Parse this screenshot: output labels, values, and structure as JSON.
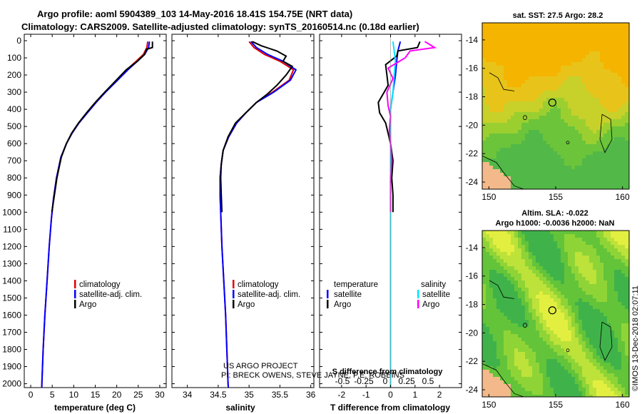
{
  "header": {
    "title_line1": "Argo profile: aoml 5904389_103 14-May-2016 18.41S 154.75E (NRT data)",
    "title_line2": "Climatology: CARS2009. Satellite-adjusted climatology: synTS_20160514.nc (0.18d earlier)"
  },
  "colors": {
    "climatology": "#e00000",
    "satellite": "#0000ff",
    "argo": "#000000",
    "satellite_s": "#00e5ff",
    "argo_s": "#ff00ff",
    "land": "#f3b98a"
  },
  "depth_axis": {
    "ticks": [
      "0",
      "100",
      "200",
      "300",
      "400",
      "500",
      "600",
      "700",
      "800",
      "900",
      "1000",
      "1100",
      "1200",
      "1300",
      "1400",
      "1500",
      "1600",
      "1700",
      "1800",
      "1900",
      "2000"
    ],
    "range": [
      0,
      2060
    ]
  },
  "chart_data": [
    {
      "type": "line",
      "name": "temperature-profile",
      "xlabel": "temperature (deg C)",
      "xlim": [
        -1.5,
        31.5
      ],
      "xticks": [
        "0",
        "5",
        "10",
        "15",
        "20",
        "25",
        "30"
      ],
      "legend": [
        "climatology",
        "satellite-adj. clim.",
        "Argo"
      ],
      "series": [
        {
          "name": "climatology",
          "points": [
            [
              27.2,
              5
            ],
            [
              27.0,
              40
            ],
            [
              26.2,
              80
            ],
            [
              24.5,
              120
            ],
            [
              22.3,
              170
            ],
            [
              20.0,
              230
            ],
            [
              17.3,
              300
            ],
            [
              15.2,
              360
            ],
            [
              13.2,
              420
            ],
            [
              11.2,
              480
            ],
            [
              9.6,
              540
            ],
            [
              8.3,
              600
            ],
            [
              7.0,
              680
            ],
            [
              6.0,
              800
            ],
            [
              5.3,
              920
            ],
            [
              4.8,
              1040
            ],
            [
              4.3,
              1200
            ],
            [
              3.8,
              1400
            ],
            [
              3.3,
              1600
            ],
            [
              2.9,
              1800
            ],
            [
              2.6,
              2000
            ],
            [
              2.55,
              2050
            ]
          ]
        },
        {
          "name": "satellite-adj. clim.",
          "points": [
            [
              27.6,
              5
            ],
            [
              27.4,
              40
            ],
            [
              26.5,
              80
            ],
            [
              24.8,
              120
            ],
            [
              22.6,
              170
            ],
            [
              20.2,
              230
            ],
            [
              17.4,
              300
            ],
            [
              15.2,
              360
            ],
            [
              13.2,
              420
            ],
            [
              11.2,
              480
            ],
            [
              9.6,
              540
            ],
            [
              8.3,
              600
            ],
            [
              7.0,
              680
            ],
            [
              6.0,
              800
            ],
            [
              5.3,
              920
            ],
            [
              4.8,
              1040
            ],
            [
              4.3,
              1200
            ],
            [
              3.8,
              1400
            ],
            [
              3.3,
              1600
            ],
            [
              2.9,
              1800
            ],
            [
              2.6,
              2000
            ],
            [
              2.55,
              2050
            ]
          ]
        },
        {
          "name": "Argo",
          "points": [
            [
              28.3,
              5
            ],
            [
              28.3,
              40
            ],
            [
              26.9,
              50
            ],
            [
              26.5,
              80
            ],
            [
              24.8,
              120
            ],
            [
              22.2,
              170
            ],
            [
              19.9,
              230
            ],
            [
              17.2,
              300
            ],
            [
              15.0,
              360
            ],
            [
              13.0,
              420
            ],
            [
              11.1,
              480
            ],
            [
              9.5,
              540
            ],
            [
              8.3,
              600
            ],
            [
              7.1,
              680
            ],
            [
              6.1,
              800
            ],
            [
              5.4,
              920
            ],
            [
              4.9,
              1000
            ]
          ]
        }
      ]
    },
    {
      "type": "line",
      "name": "salinity-profile",
      "xlabel": "salinity",
      "xlim": [
        33.75,
        36.05
      ],
      "xticks": [
        "34",
        "34.5",
        "35",
        "35.5",
        "36"
      ],
      "legend": [
        "climatology",
        "satellite-adj. clim.",
        "Argo"
      ],
      "credit_line1": "US ARGO PROJECT",
      "credit_line2": "PI: BRECK OWENS, STEVE JAYNE, P.E. ROBBINS",
      "series": [
        {
          "name": "climatology",
          "points": [
            [
              35.0,
              5
            ],
            [
              35.08,
              40
            ],
            [
              35.25,
              80
            ],
            [
              35.5,
              120
            ],
            [
              35.72,
              170
            ],
            [
              35.65,
              230
            ],
            [
              35.38,
              300
            ],
            [
              35.12,
              360
            ],
            [
              34.95,
              420
            ],
            [
              34.8,
              480
            ],
            [
              34.67,
              560
            ],
            [
              34.58,
              640
            ],
            [
              34.55,
              720
            ],
            [
              34.53,
              800
            ],
            [
              34.53,
              900
            ],
            [
              34.54,
              1000
            ],
            [
              34.56,
              1200
            ],
            [
              34.59,
              1400
            ],
            [
              34.62,
              1600
            ],
            [
              34.64,
              1800
            ],
            [
              34.66,
              2000
            ],
            [
              34.67,
              2050
            ]
          ]
        },
        {
          "name": "satellite-adj. clim.",
          "points": [
            [
              35.03,
              5
            ],
            [
              35.12,
              40
            ],
            [
              35.3,
              80
            ],
            [
              35.55,
              120
            ],
            [
              35.76,
              170
            ],
            [
              35.67,
              230
            ],
            [
              35.4,
              300
            ],
            [
              35.12,
              360
            ],
            [
              34.95,
              420
            ],
            [
              34.8,
              480
            ],
            [
              34.67,
              560
            ],
            [
              34.58,
              640
            ],
            [
              34.55,
              720
            ],
            [
              34.53,
              800
            ],
            [
              34.53,
              900
            ],
            [
              34.54,
              1000
            ],
            [
              34.56,
              1200
            ],
            [
              34.59,
              1400
            ],
            [
              34.62,
              1600
            ],
            [
              34.64,
              1800
            ],
            [
              34.66,
              2000
            ],
            [
              34.67,
              2050
            ]
          ]
        },
        {
          "name": "Argo",
          "points": [
            [
              35.05,
              5
            ],
            [
              35.2,
              30
            ],
            [
              35.45,
              60
            ],
            [
              35.6,
              90
            ],
            [
              35.55,
              120
            ],
            [
              35.7,
              150
            ],
            [
              35.6,
              200
            ],
            [
              35.45,
              260
            ],
            [
              35.3,
              310
            ],
            [
              35.12,
              360
            ],
            [
              34.95,
              420
            ],
            [
              34.78,
              480
            ],
            [
              34.66,
              560
            ],
            [
              34.58,
              640
            ],
            [
              34.55,
              720
            ],
            [
              34.54,
              800
            ],
            [
              34.55,
              900
            ],
            [
              34.56,
              1000
            ]
          ]
        }
      ]
    },
    {
      "type": "line",
      "name": "difference-profile",
      "xlabel": "T difference from climatology",
      "xlabel_top": "S difference from climatology",
      "xlim": [
        -2.9,
        2.9
      ],
      "xticks": [
        "-2",
        "-1",
        "0",
        "1",
        "2"
      ],
      "xticks_top": [
        "-0.5",
        "-0.25",
        "0",
        "0.25",
        "0.5"
      ],
      "legend_left_title": "temperature",
      "legend_right_title": "salinity",
      "legend_left": [
        "satellite",
        "Argo"
      ],
      "legend_right": [
        "satellite",
        "Argo"
      ],
      "series": [
        {
          "name": "T satellite",
          "points": [
            [
              0.4,
              5
            ],
            [
              0.3,
              60
            ],
            [
              0.25,
              120
            ],
            [
              0.2,
              200
            ],
            [
              0.1,
              300
            ],
            [
              0.0,
              400
            ],
            [
              0.0,
              600
            ],
            [
              0.0,
              1000
            ],
            [
              0.0,
              2050
            ]
          ]
        },
        {
          "name": "T Argo",
          "points": [
            [
              1.2,
              5
            ],
            [
              1.1,
              40
            ],
            [
              0.3,
              60
            ],
            [
              0.25,
              90
            ],
            [
              -0.2,
              140
            ],
            [
              -0.15,
              200
            ],
            [
              -0.1,
              260
            ],
            [
              -0.5,
              360
            ],
            [
              -0.45,
              420
            ],
            [
              -0.2,
              480
            ],
            [
              -0.1,
              540
            ],
            [
              0.0,
              600
            ],
            [
              0.1,
              700
            ],
            [
              0.05,
              800
            ],
            [
              0.1,
              900
            ],
            [
              0.1,
              1000
            ]
          ]
        },
        {
          "name": "S satellite",
          "points": [
            [
              0.1,
              5
            ],
            [
              0.15,
              60
            ],
            [
              0.2,
              120
            ],
            [
              0.15,
              200
            ],
            [
              0.1,
              300
            ],
            [
              0.0,
              400
            ],
            [
              0.0,
              1000
            ],
            [
              0.0,
              2050
            ]
          ]
        },
        {
          "name": "S Argo",
          "points": [
            [
              1.4,
              5
            ],
            [
              1.8,
              40
            ],
            [
              0.8,
              60
            ],
            [
              0.6,
              100
            ],
            [
              -0.1,
              160
            ],
            [
              0.1,
              220
            ],
            [
              -0.15,
              300
            ],
            [
              -0.1,
              380
            ],
            [
              0.0,
              440
            ],
            [
              -0.05,
              520
            ],
            [
              0.0,
              600
            ],
            [
              0.05,
              700
            ],
            [
              0.0,
              800
            ],
            [
              0.0,
              900
            ],
            [
              0.0,
              1000
            ]
          ]
        }
      ]
    },
    {
      "type": "heatmap",
      "name": "sst-map",
      "title": "sat. SST: 27.5 Argo: 28.2",
      "xticks": [
        "150",
        "155",
        "160"
      ],
      "yticks": [
        "-14",
        "-16",
        "-18",
        "-20",
        "-22",
        "-24"
      ],
      "xlim": [
        149.5,
        160.5
      ],
      "ylim": [
        -24.5,
        -12.8
      ],
      "argo_position": [
        154.75,
        -18.41
      ]
    },
    {
      "type": "heatmap",
      "name": "sla-map",
      "title_line1": "Altim. SLA: -0.022",
      "title_line2": "Argo h1000: -0.0036 h2000: NaN",
      "xticks": [
        "150",
        "155",
        "160"
      ],
      "yticks": [
        "-14",
        "-16",
        "-18",
        "-20",
        "-22",
        "-24"
      ],
      "xlim": [
        149.5,
        160.5
      ],
      "ylim": [
        -24.5,
        -12.8
      ],
      "argo_position": [
        154.75,
        -18.41
      ]
    }
  ],
  "footer": {
    "watermark": "©IMOS 13-Dec-2018 02:07:11"
  }
}
